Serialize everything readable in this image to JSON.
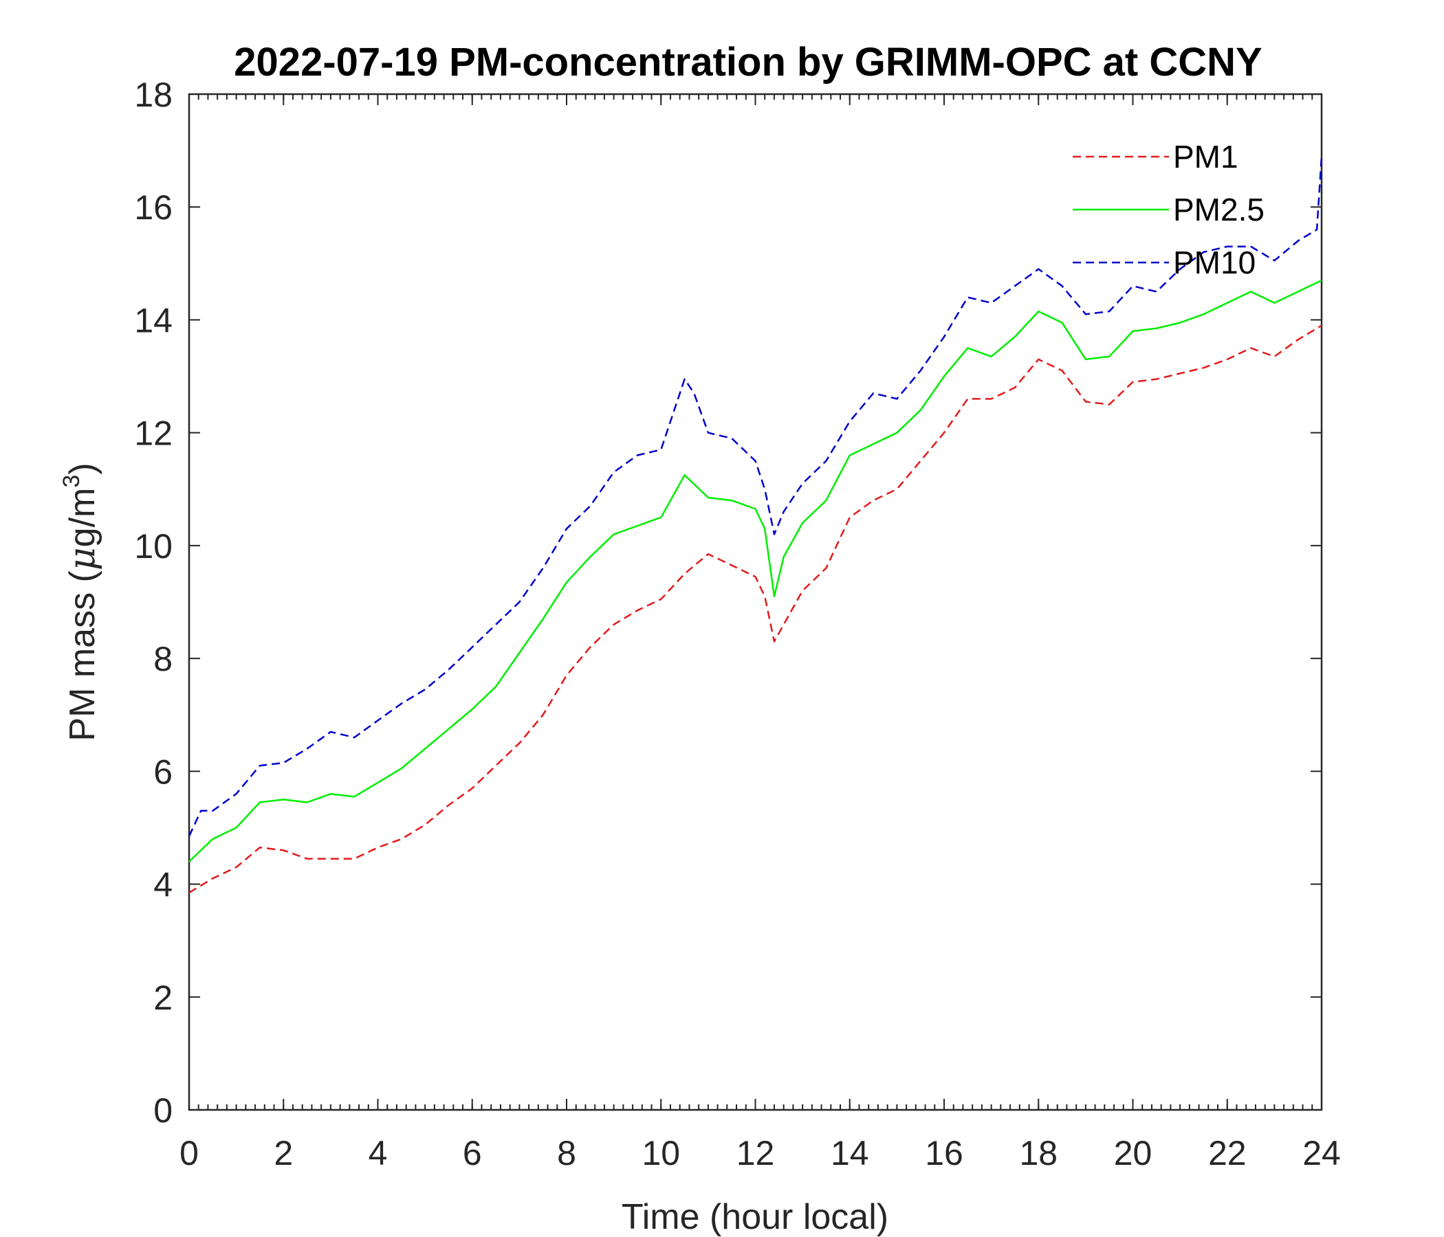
{
  "chart_data": {
    "type": "line",
    "title": "2022-07-19 PM-concentration by GRIMM-OPC at CCNY",
    "xlabel": "Time (hour local)",
    "ylabel_prefix": "PM mass (",
    "ylabel_mu": "μ",
    "ylabel_unit": "g/m",
    "ylabel_sup": "3",
    "ylabel_suffix": ")",
    "xlim": [
      0,
      24
    ],
    "ylim": [
      0,
      18
    ],
    "xticks": [
      0,
      2,
      4,
      6,
      8,
      10,
      12,
      14,
      16,
      18,
      20,
      22,
      24
    ],
    "yticks": [
      0,
      2,
      4,
      6,
      8,
      10,
      12,
      14,
      16,
      18
    ],
    "grid": false,
    "legend_position": "top-right",
    "series": [
      {
        "name": "PM1",
        "color": "#e41a1c",
        "dash": "dashed",
        "x": [
          0,
          0.5,
          1,
          1.5,
          2,
          2.5,
          3,
          3.5,
          4,
          4.5,
          5,
          5.5,
          6,
          6.5,
          7,
          7.5,
          8,
          8.5,
          9,
          9.5,
          10,
          10.5,
          11,
          11.5,
          12,
          12.2,
          12.4,
          12.6,
          13,
          13.5,
          14,
          14.5,
          15,
          15.5,
          16,
          16.5,
          17,
          17.5,
          18,
          18.5,
          19,
          19.5,
          20,
          20.5,
          21,
          21.5,
          22,
          22.5,
          23,
          23.5,
          24
        ],
        "values": [
          3.85,
          4.1,
          4.3,
          4.65,
          4.6,
          4.45,
          4.45,
          4.45,
          4.65,
          4.8,
          5.05,
          5.4,
          5.7,
          6.1,
          6.5,
          7.0,
          7.7,
          8.2,
          8.6,
          8.85,
          9.05,
          9.5,
          9.85,
          9.65,
          9.45,
          9.1,
          8.3,
          8.6,
          9.2,
          9.6,
          10.5,
          10.8,
          11.0,
          11.5,
          12.0,
          12.6,
          12.6,
          12.8,
          13.3,
          13.1,
          12.55,
          12.5,
          12.9,
          12.95,
          13.05,
          13.15,
          13.3,
          13.5,
          13.35,
          13.65,
          13.9
        ]
      },
      {
        "name": "PM2.5",
        "color": "#00ee00",
        "dash": "solid",
        "x": [
          0,
          0.5,
          1,
          1.5,
          2,
          2.5,
          3,
          3.5,
          4,
          4.5,
          5,
          5.5,
          6,
          6.5,
          7,
          7.5,
          8,
          8.5,
          9,
          9.5,
          10,
          10.5,
          11,
          11.5,
          12,
          12.2,
          12.4,
          12.6,
          13,
          13.5,
          14,
          14.5,
          15,
          15.5,
          16,
          16.5,
          17,
          17.5,
          18,
          18.5,
          19,
          19.5,
          20,
          20.5,
          21,
          21.5,
          22,
          22.5,
          23,
          23.5,
          24
        ],
        "values": [
          4.4,
          4.8,
          5.0,
          5.45,
          5.5,
          5.45,
          5.6,
          5.55,
          5.8,
          6.05,
          6.4,
          6.75,
          7.1,
          7.5,
          8.1,
          8.7,
          9.35,
          9.8,
          10.2,
          10.35,
          10.5,
          11.25,
          10.85,
          10.8,
          10.65,
          10.3,
          9.1,
          9.8,
          10.4,
          10.8,
          11.6,
          11.8,
          12.0,
          12.4,
          13.0,
          13.5,
          13.35,
          13.7,
          14.15,
          13.95,
          13.3,
          13.35,
          13.8,
          13.85,
          13.95,
          14.1,
          14.3,
          14.5,
          14.3,
          14.5,
          14.7
        ]
      },
      {
        "name": "PM10",
        "color": "#0000cc",
        "dash": "dashed",
        "x": [
          0,
          0.25,
          0.5,
          1,
          1.5,
          2,
          2.5,
          3,
          3.5,
          4,
          4.5,
          5,
          5.5,
          6,
          6.5,
          7,
          7.5,
          8,
          8.5,
          9,
          9.5,
          10,
          10.5,
          10.7,
          11,
          11.5,
          12,
          12.2,
          12.4,
          12.6,
          13,
          13.5,
          14,
          14.5,
          15,
          15.5,
          16,
          16.5,
          17,
          17.5,
          18,
          18.5,
          19,
          19.5,
          20,
          20.5,
          21,
          21.5,
          22,
          22.5,
          23,
          23.5,
          23.9,
          24
        ],
        "values": [
          4.85,
          5.3,
          5.3,
          5.6,
          6.1,
          6.15,
          6.4,
          6.7,
          6.6,
          6.9,
          7.2,
          7.45,
          7.8,
          8.2,
          8.6,
          9.0,
          9.6,
          10.3,
          10.7,
          11.3,
          11.6,
          11.7,
          12.95,
          12.7,
          12.0,
          11.9,
          11.5,
          11.0,
          10.2,
          10.6,
          11.1,
          11.5,
          12.2,
          12.7,
          12.6,
          13.1,
          13.7,
          14.4,
          14.3,
          14.6,
          14.9,
          14.6,
          14.1,
          14.15,
          14.6,
          14.5,
          14.9,
          15.2,
          15.3,
          15.3,
          15.05,
          15.4,
          15.6,
          16.9
        ]
      }
    ]
  }
}
